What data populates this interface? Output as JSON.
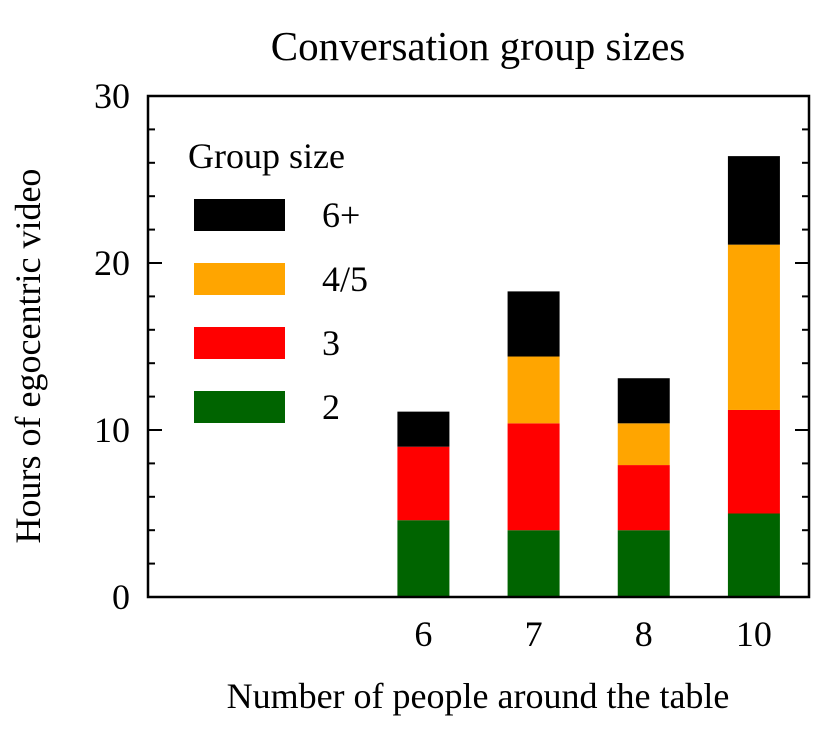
{
  "chart_data": {
    "type": "bar",
    "stacked": true,
    "title": "Conversation group sizes",
    "xlabel": "Number of people around the table",
    "ylabel": "Hours of egocentric video",
    "categories": [
      "6",
      "7",
      "8",
      "10"
    ],
    "ylim": [
      0,
      30
    ],
    "yticks": [
      0,
      10,
      20,
      30
    ],
    "grid": false,
    "legend": {
      "title": "Group size",
      "placement": "top-left"
    },
    "series": [
      {
        "name": "2",
        "color": "#006400",
        "values": [
          4.6,
          4.0,
          4.0,
          5.0
        ]
      },
      {
        "name": "3",
        "color": "#ff0000",
        "values": [
          4.4,
          6.4,
          3.9,
          6.2
        ]
      },
      {
        "name": "4/5",
        "color": "#ffa500",
        "values": [
          0.0,
          4.0,
          2.5,
          9.9
        ]
      },
      {
        "name": "6+",
        "color": "#000000",
        "values": [
          2.1,
          3.9,
          2.7,
          5.3
        ]
      }
    ]
  }
}
